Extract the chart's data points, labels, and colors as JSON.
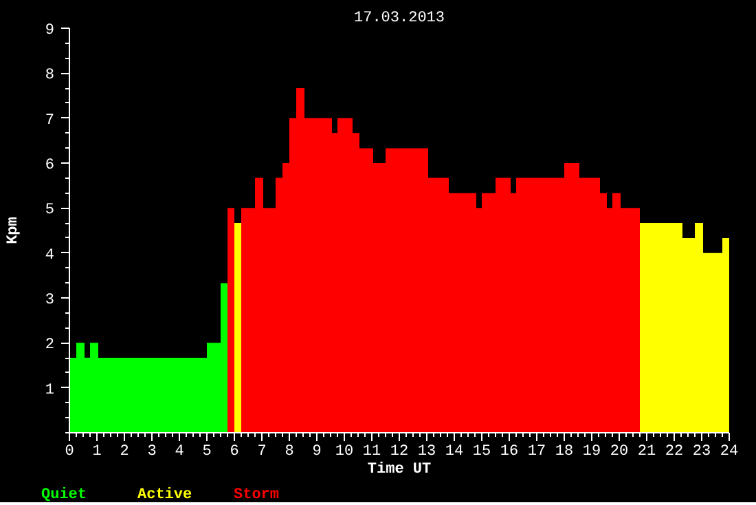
{
  "chart_data": {
    "type": "bar",
    "title": "17.03.2013",
    "xlabel": "Time UT",
    "ylabel": "Kpm",
    "series": [
      {
        "name": "Quiet",
        "color": "#00ff00",
        "x": [
          0.125,
          0.4,
          0.65,
          0.9,
          3.025,
          5.25,
          5.625
        ],
        "values": [
          1.67,
          2,
          1.67,
          2,
          1.67,
          2,
          3.33
        ]
      },
      {
        "name": "Active",
        "color": "#ffff00",
        "x": [
          6.125,
          21.525,
          22.525,
          22.9,
          23.4,
          23.875
        ],
        "values": [
          4.67,
          4.67,
          4.33,
          4.67,
          4,
          4.33
        ]
      },
      {
        "name": "Storm",
        "color": "#ff0000",
        "x": [
          5.875,
          6.5,
          6.9,
          7.275,
          7.625,
          7.875,
          8.125,
          8.4,
          9.05,
          9.65,
          10.025,
          10.425,
          10.8,
          11.275,
          12.275,
          13.425,
          14.3,
          14.9,
          15.25,
          15.775,
          16.15,
          17.125,
          18.275,
          18.925,
          19.425,
          19.65,
          19.9,
          20.4
        ],
        "values": [
          5,
          5,
          5.67,
          5,
          5.67,
          6,
          7,
          7.67,
          7,
          6.67,
          7,
          6.67,
          6.33,
          6,
          6.33,
          5.67,
          5.33,
          5,
          5.33,
          5.67,
          5.33,
          5.67,
          6,
          5.67,
          5.33,
          5,
          5.33,
          5
        ]
      }
    ],
    "xlim": [
      0,
      24
    ],
    "xticks": [
      0,
      1,
      2,
      3,
      4,
      5,
      6,
      7,
      8,
      9,
      10,
      11,
      12,
      13,
      14,
      15,
      16,
      17,
      18,
      19,
      20,
      21,
      22,
      23,
      24
    ],
    "ylim": [
      0,
      9
    ],
    "yticks": [
      1,
      2,
      3,
      4,
      5,
      6,
      7,
      8,
      9
    ],
    "grid": false,
    "legend": "bottom left"
  }
}
